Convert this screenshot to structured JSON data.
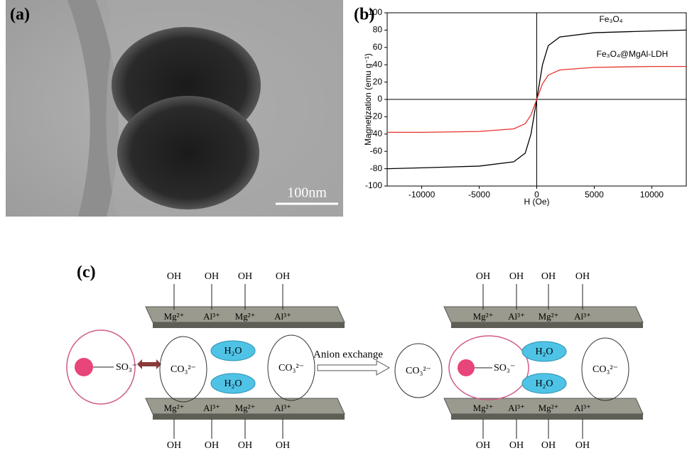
{
  "panel_a": {
    "label": "(a)",
    "scale_bar": "100nm"
  },
  "chart_data": {
    "type": "line",
    "label": "(b)",
    "x_label": "H (Oe)",
    "y_label": "Magnetization (emu g⁻¹)",
    "x": [
      -13000,
      -10000,
      -5000,
      -2000,
      -1000,
      -500,
      0,
      500,
      1000,
      2000,
      5000,
      10000,
      13000
    ],
    "series": [
      {
        "name": "Fe₃O₄",
        "color": "#000000",
        "values": [
          -80,
          -79,
          -77,
          -72,
          -62,
          -40,
          0,
          40,
          62,
          72,
          77,
          79,
          80
        ]
      },
      {
        "name": "Fe₃O₄@MgAl-LDH",
        "color": "#e8322b",
        "values": [
          -38,
          -38,
          -37,
          -34,
          -28,
          -18,
          0,
          18,
          28,
          34,
          37,
          38,
          38
        ]
      }
    ],
    "xlim": [
      -13000,
      13000
    ],
    "xticks": [
      -10000,
      -5000,
      0,
      5000,
      10000
    ],
    "ylim": [
      -100,
      100
    ],
    "yticks": [
      -100,
      -80,
      -60,
      -40,
      -20,
      0,
      20,
      40,
      60,
      80,
      100
    ]
  },
  "panel_c": {
    "label": "(c)",
    "arrow_label": "Anion exchange",
    "exchanged": "CO₃²⁻",
    "left": {
      "top_oh": [
        "OH",
        "OH",
        "OH",
        "OH"
      ],
      "top_ions": [
        "Mg²⁺",
        "Al³⁺",
        "Mg²⁺",
        "Al³⁺"
      ],
      "bottom_ions": [
        "Mg²⁺",
        "Al³⁺",
        "Mg²⁺",
        "Al³⁺"
      ],
      "bottom_oh": [
        "OH",
        "OH",
        "OH",
        "OH"
      ],
      "sulfonate": "SO₃⁻",
      "carbonates": [
        "CO₃²⁻",
        "CO₃²⁻"
      ],
      "water": [
        "H₂O",
        "H₂O"
      ]
    },
    "right": {
      "top_oh": [
        "OH",
        "OH",
        "OH",
        "OH"
      ],
      "top_ions": [
        "Mg²⁺",
        "Al³⁺",
        "Mg²⁺",
        "Al³⁺"
      ],
      "bottom_ions": [
        "Mg²⁺",
        "Al³⁺",
        "Mg²⁺",
        "Al³⁺"
      ],
      "bottom_oh": [
        "OH",
        "OH",
        "OH",
        "OH"
      ],
      "sulfonate": "SO₃⁻",
      "carbonates": [
        "CO₃²⁻"
      ],
      "water": [
        "H₂O",
        "H₂O"
      ]
    }
  }
}
